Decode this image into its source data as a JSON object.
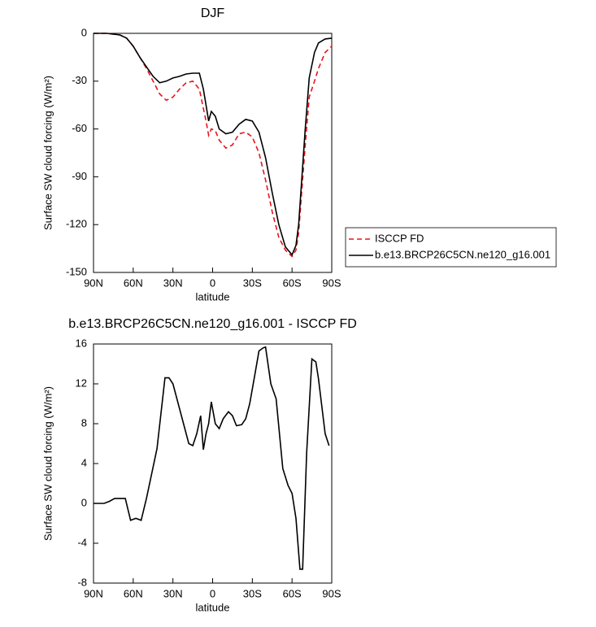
{
  "chart_data": [
    {
      "type": "line",
      "title": "DJF",
      "x_label": "latitude",
      "y_label": "Surface SW cloud forcing (W/m²)",
      "x": [
        90,
        80,
        70,
        65,
        60,
        55,
        50,
        45,
        40,
        35,
        30,
        25,
        20,
        15,
        10,
        7,
        5,
        3,
        1,
        -2,
        -5,
        -10,
        -15,
        -20,
        -25,
        -30,
        -35,
        -40,
        -45,
        -50,
        -55,
        -60,
        -63,
        -65,
        -70,
        -73,
        -77,
        -80,
        -85,
        -90
      ],
      "series": [
        {
          "name": "ISCCP FD",
          "color": "#e8141b",
          "line_style": "dashed",
          "values": [
            0,
            0,
            -1,
            -3,
            -8,
            -15,
            -22,
            -30,
            -38,
            -42,
            -40,
            -35,
            -31,
            -30,
            -35,
            -47,
            -55,
            -64,
            -60,
            -61,
            -67,
            -72,
            -70,
            -63,
            -62,
            -65,
            -75,
            -92,
            -112,
            -128,
            -136,
            -140,
            -136,
            -125,
            -70,
            -40,
            -30,
            -22,
            -12,
            -8
          ]
        },
        {
          "name": "b.e13.BRCP26C5CN.ne120_g16.001",
          "color": "#000000",
          "line_style": "solid",
          "values": [
            0,
            0,
            -1,
            -3,
            -8,
            -15,
            -21,
            -27,
            -31,
            -30,
            -28,
            -27,
            -25.5,
            -25,
            -25,
            -35,
            -45,
            -55,
            -49,
            -52,
            -60,
            -63,
            -62,
            -57,
            -54,
            -55,
            -62,
            -78,
            -100,
            -120,
            -134,
            -139,
            -133,
            -120,
            -60,
            -28,
            -12,
            -6,
            -3.5,
            -3
          ]
        }
      ],
      "xlim": [
        90,
        -90
      ],
      "xticks": [
        {
          "value": 90,
          "label": "90N"
        },
        {
          "value": 60,
          "label": "60N"
        },
        {
          "value": 30,
          "label": "30N"
        },
        0,
        {
          "value": -30,
          "label": "30S"
        },
        {
          "value": -60,
          "label": "60S"
        },
        {
          "value": -90,
          "label": "90S"
        }
      ],
      "ylim": [
        -150,
        0
      ],
      "yticks": [
        -150,
        -120,
        -90,
        -60,
        -30,
        0
      ],
      "legend": "right"
    },
    {
      "type": "line",
      "title": "b.e13.BRCP26C5CN.ne120_g16.001 - ISCCP FD",
      "x_label": "latitude",
      "y_label": "Surface SW cloud forcing (W/m²)",
      "x": [
        90,
        82,
        78,
        74,
        70,
        66,
        62,
        58,
        54,
        50,
        46,
        42,
        36,
        33,
        30,
        26,
        22,
        18,
        15,
        12,
        9,
        7,
        5,
        3,
        1,
        -2,
        -5,
        -8,
        -12,
        -15,
        -18,
        -22,
        -25,
        -28,
        -32,
        -35,
        -38,
        -40,
        -44,
        -48,
        -53,
        -57,
        -60,
        -63,
        -66,
        -68,
        -71,
        -75,
        -78,
        -80,
        -85,
        -88
      ],
      "values": [
        0,
        0,
        0.2,
        0.5,
        0.5,
        0.5,
        -1.7,
        -1.5,
        -1.7,
        0.5,
        3,
        5.5,
        12.6,
        12.6,
        12,
        10,
        8,
        6,
        5.8,
        7,
        8.8,
        5.4,
        7,
        8,
        10.2,
        8,
        7.5,
        8.5,
        9.2,
        8.8,
        7.8,
        7.9,
        8.5,
        10,
        13,
        15.3,
        15.6,
        15.7,
        12,
        10.5,
        3.5,
        1.8,
        1,
        -1.5,
        -6.6,
        -6.6,
        5,
        14.5,
        14.2,
        12.5,
        7,
        5.8
      ],
      "color": "#000000",
      "xlim": [
        90,
        -90
      ],
      "xticks": [
        {
          "value": 90,
          "label": "90N"
        },
        {
          "value": 60,
          "label": "60N"
        },
        {
          "value": 30,
          "label": "30N"
        },
        0,
        {
          "value": -30,
          "label": "30S"
        },
        {
          "value": -60,
          "label": "60S"
        },
        {
          "value": -90,
          "label": "90S"
        }
      ],
      "ylim": [
        -8,
        16
      ],
      "yticks": [
        -8,
        -4,
        0,
        4,
        8,
        12,
        16
      ]
    }
  ]
}
